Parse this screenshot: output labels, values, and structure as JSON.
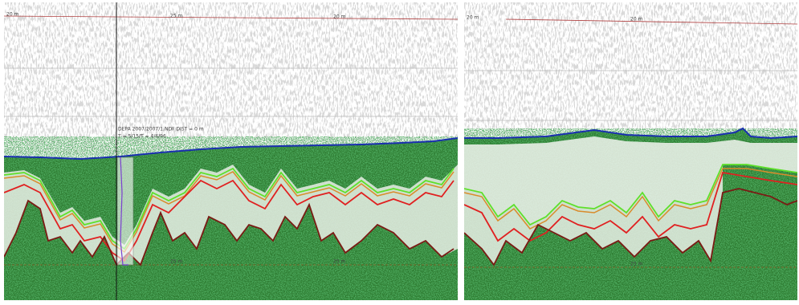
{
  "left_panel": {
    "depth_labels": [
      "20 m",
      "25 m",
      "20 m"
    ],
    "bottom_labels": [
      "25 m",
      "25 m"
    ],
    "cursor_readout": [
      "DEPA 2007/2007/1.NDF   DIST = 0 m",
      "T = 5/15/T = 4/6/96"
    ]
  },
  "right_panel": {
    "depth_labels": [
      "20 m",
      "20 m"
    ],
    "bottom_labels": [
      "25 m"
    ]
  }
}
